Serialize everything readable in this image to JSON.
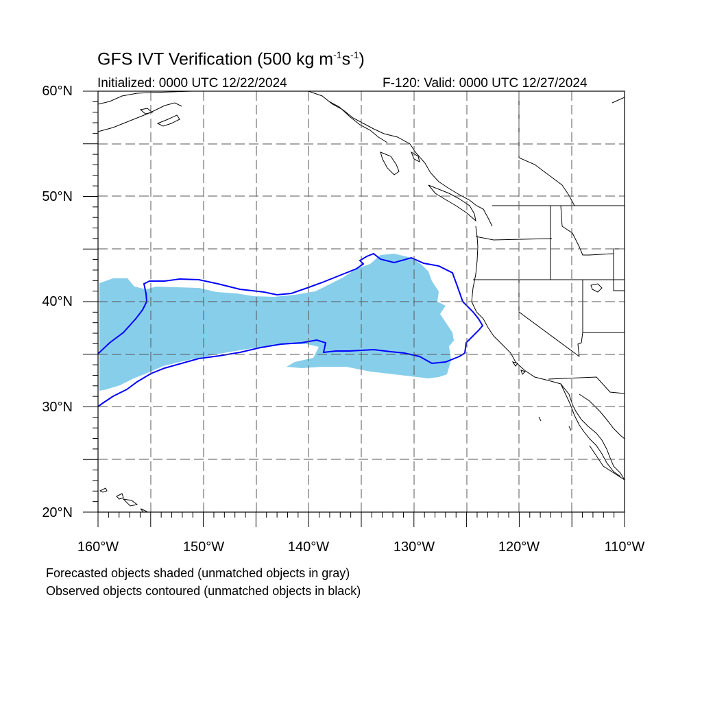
{
  "title": {
    "prefix": "GFS IVT Verification (500 kg m",
    "sup1": "-1",
    "mid": "s",
    "sup2": "-1",
    "suffix": ")"
  },
  "initialized": "Initialized: 0000 UTC 12/22/2024",
  "valid": "F-120: Valid: 0000 UTC 12/27/2024",
  "lat_labels": [
    "60°N",
    "50°N",
    "40°N",
    "30°N",
    "20°N"
  ],
  "lon_labels": [
    "160°W",
    "150°W",
    "140°W",
    "130°W",
    "120°W",
    "110°W"
  ],
  "notes": [
    "Forecasted objects shaded (unmatched objects in gray)",
    "Observed objects contoured (unmatched objects in black)"
  ],
  "map": {
    "extent": {
      "lon_min": -160,
      "lon_max": -110,
      "lat_min": 20,
      "lat_max": 60
    },
    "gridline_spacing_deg": 5,
    "forecast_fill_color": "#87ceeb",
    "observed_contour_color": "#0000ff",
    "coastline_color": "#000000",
    "gridline_color": "#555555"
  }
}
